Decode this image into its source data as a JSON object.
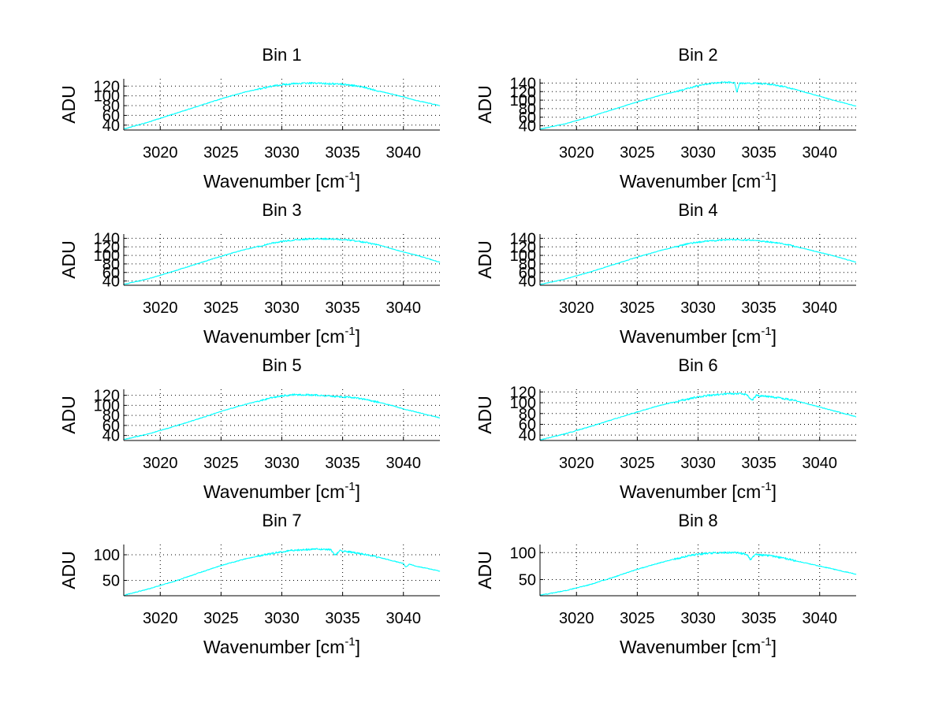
{
  "figure": {
    "background": "#ffffff",
    "line_color": "#00ffff"
  },
  "chart_data": [
    {
      "type": "line",
      "title": "Bin 1",
      "xlabel": "Wavenumber [cm-1]",
      "ylabel": "ADU",
      "xlim": [
        3017,
        3043
      ],
      "ylim": [
        30,
        135
      ],
      "xticks": [
        3020,
        3025,
        3030,
        3035,
        3040
      ],
      "yticks": [
        40,
        60,
        80,
        100,
        120
      ],
      "ytick_labels": [
        "40",
        "60",
        "80",
        "100",
        "120"
      ],
      "grid": true,
      "series": [
        {
          "x": [
            3017,
            3019,
            3021,
            3023,
            3025,
            3027,
            3029,
            3030,
            3031,
            3032,
            3033,
            3034,
            3035,
            3036,
            3037,
            3038,
            3039,
            3040,
            3041,
            3043
          ],
          "values": [
            32,
            46,
            62,
            78,
            94,
            108,
            119,
            123,
            125,
            126,
            126,
            125,
            124,
            121,
            116,
            110,
            104,
            98,
            91,
            80
          ]
        }
      ]
    },
    {
      "type": "line",
      "title": "Bin 2",
      "xlabel": "Wavenumber [cm-1]",
      "ylabel": "ADU",
      "xlim": [
        3017,
        3043
      ],
      "ylim": [
        30,
        150
      ],
      "xticks": [
        3020,
        3025,
        3030,
        3035,
        3040
      ],
      "yticks": [
        40,
        60,
        80,
        100,
        120,
        140
      ],
      "ytick_labels": [
        "40",
        "60",
        "80",
        "100",
        "120",
        "140"
      ],
      "grid": true,
      "series": [
        {
          "x": [
            3017,
            3019,
            3021,
            3023,
            3025,
            3027,
            3029,
            3030,
            3031,
            3032,
            3033,
            3033.2,
            3033.4,
            3034,
            3035,
            3036,
            3037,
            3038,
            3039,
            3040,
            3041,
            3043
          ],
          "values": [
            32,
            44,
            60,
            78,
            96,
            112,
            126,
            134,
            139,
            142,
            141,
            118,
            139,
            140,
            139,
            137,
            132,
            125,
            117,
            109,
            101,
            86
          ]
        }
      ]
    },
    {
      "type": "line",
      "title": "Bin 3",
      "xlabel": "Wavenumber [cm-1]",
      "ylabel": "ADU",
      "xlim": [
        3017,
        3043
      ],
      "ylim": [
        30,
        150
      ],
      "xticks": [
        3020,
        3025,
        3030,
        3035,
        3040
      ],
      "yticks": [
        40,
        60,
        80,
        100,
        120,
        140
      ],
      "ytick_labels": [
        "40",
        "60",
        "80",
        "100",
        "120",
        "140"
      ],
      "grid": true,
      "series": [
        {
          "x": [
            3017,
            3019,
            3021,
            3023,
            3025,
            3027,
            3029,
            3030,
            3031,
            3032,
            3033,
            3034,
            3035,
            3036,
            3037,
            3038,
            3039,
            3040,
            3041,
            3043
          ],
          "values": [
            32,
            45,
            62,
            80,
            98,
            114,
            127,
            133,
            136,
            138,
            139,
            138,
            137,
            134,
            130,
            124,
            116,
            108,
            101,
            84
          ]
        }
      ]
    },
    {
      "type": "line",
      "title": "Bin 4",
      "xlabel": "Wavenumber [cm-1]",
      "ylabel": "ADU",
      "xlim": [
        3017,
        3043
      ],
      "ylim": [
        30,
        150
      ],
      "xticks": [
        3020,
        3025,
        3030,
        3035,
        3040
      ],
      "yticks": [
        40,
        60,
        80,
        100,
        120,
        140
      ],
      "ytick_labels": [
        "40",
        "60",
        "80",
        "100",
        "120",
        "140"
      ],
      "grid": true,
      "series": [
        {
          "x": [
            3017,
            3019,
            3021,
            3023,
            3025,
            3027,
            3029,
            3030,
            3031,
            3032,
            3033,
            3034,
            3035,
            3036,
            3037,
            3038,
            3039,
            3040,
            3041,
            3043
          ],
          "values": [
            32,
            44,
            60,
            78,
            96,
            112,
            126,
            131,
            134,
            136,
            137,
            136,
            134,
            131,
            127,
            121,
            114,
            107,
            100,
            84
          ]
        }
      ]
    },
    {
      "type": "line",
      "title": "Bin 5",
      "xlabel": "Wavenumber [cm-1]",
      "ylabel": "ADU",
      "xlim": [
        3017,
        3043
      ],
      "ylim": [
        30,
        132
      ],
      "xticks": [
        3020,
        3025,
        3030,
        3035,
        3040
      ],
      "yticks": [
        40,
        60,
        80,
        100,
        120
      ],
      "ytick_labels": [
        "40",
        "60",
        "80",
        "100",
        "120"
      ],
      "grid": true,
      "series": [
        {
          "x": [
            3017,
            3019,
            3021,
            3023,
            3025,
            3027,
            3029,
            3030,
            3031,
            3032,
            3033,
            3034,
            3035,
            3036,
            3037,
            3038,
            3039,
            3040,
            3041,
            3043
          ],
          "values": [
            32,
            43,
            57,
            72,
            88,
            102,
            114,
            119,
            121,
            121,
            120,
            118,
            117,
            115,
            111,
            106,
            100,
            93,
            87,
            75
          ]
        }
      ]
    },
    {
      "type": "line",
      "title": "Bin 6",
      "xlabel": "Wavenumber [cm-1]",
      "ylabel": "ADU",
      "xlim": [
        3017,
        3043
      ],
      "ylim": [
        30,
        125
      ],
      "xticks": [
        3020,
        3025,
        3030,
        3035,
        3040
      ],
      "yticks": [
        40,
        60,
        80,
        100,
        120
      ],
      "ytick_labels": [
        "40",
        "60",
        "80",
        "100",
        "120"
      ],
      "grid": true,
      "series": [
        {
          "x": [
            3017,
            3019,
            3021,
            3023,
            3025,
            3027,
            3029,
            3030,
            3031,
            3032,
            3033,
            3034,
            3034.4,
            3034.8,
            3035,
            3036,
            3037,
            3038,
            3039,
            3040,
            3041,
            3043
          ],
          "values": [
            31,
            42,
            55,
            69,
            83,
            96,
            106,
            111,
            114,
            116,
            117,
            116,
            104,
            114,
            113,
            111,
            108,
            104,
            98,
            92,
            86,
            74
          ]
        }
      ]
    },
    {
      "type": "line",
      "title": "Bin 7",
      "xlabel": "Wavenumber [cm-1]",
      "ylabel": "ADU",
      "xlim": [
        3017,
        3043
      ],
      "ylim": [
        20,
        120
      ],
      "xticks": [
        3020,
        3025,
        3030,
        3035,
        3040
      ],
      "yticks": [
        50,
        100
      ],
      "ytick_labels": [
        "50",
        "100"
      ],
      "grid": true,
      "series": [
        {
          "x": [
            3017,
            3019,
            3021,
            3023,
            3025,
            3027,
            3029,
            3030,
            3031,
            3032,
            3033,
            3034,
            3034.4,
            3034.8,
            3035,
            3036,
            3037,
            3038,
            3039,
            3040,
            3040.2,
            3040.5,
            3041,
            3043
          ],
          "values": [
            21,
            33,
            47,
            63,
            79,
            92,
            102,
            106,
            109,
            110,
            111,
            110,
            99,
            108,
            107,
            104,
            100,
            95,
            89,
            83,
            76,
            82,
            78,
            68
          ]
        }
      ]
    },
    {
      "type": "line",
      "title": "Bin 8",
      "xlabel": "Wavenumber [cm-1]",
      "ylabel": "ADU",
      "xlim": [
        3017,
        3043
      ],
      "ylim": [
        20,
        115
      ],
      "xticks": [
        3020,
        3025,
        3030,
        3035,
        3040
      ],
      "yticks": [
        50,
        100
      ],
      "ytick_labels": [
        "50",
        "100"
      ],
      "grid": true,
      "series": [
        {
          "x": [
            3017,
            3019,
            3021,
            3023,
            3025,
            3027,
            3029,
            3030,
            3031,
            3032,
            3033,
            3034,
            3034.3,
            3034.7,
            3035,
            3036,
            3037,
            3038,
            3039,
            3040,
            3041,
            3043
          ],
          "values": [
            21,
            29,
            40,
            54,
            69,
            82,
            93,
            97,
            99,
            100,
            100,
            97,
            87,
            97,
            96,
            94,
            90,
            85,
            80,
            75,
            70,
            60
          ]
        }
      ]
    }
  ]
}
